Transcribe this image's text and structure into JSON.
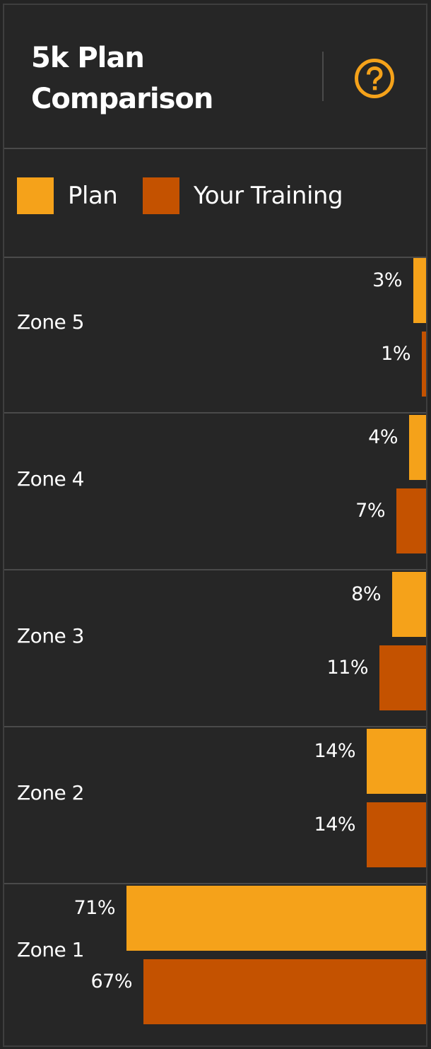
{
  "header": {
    "title": "5k Plan Comparison",
    "help_icon": "question-circle-icon"
  },
  "legend": {
    "items": [
      {
        "label": "Plan",
        "color": "#F5A21A"
      },
      {
        "label": "Your Training",
        "color": "#C45200"
      }
    ]
  },
  "colors": {
    "background": "#262626",
    "divider": "#4a4a4a",
    "accent": "#F5A21A",
    "plan": "#F5A21A",
    "yours": "#C45200"
  },
  "chart_data": {
    "type": "bar",
    "orientation": "horizontal",
    "categories": [
      "Zone 5",
      "Zone 4",
      "Zone 3",
      "Zone 2",
      "Zone 1"
    ],
    "series": [
      {
        "name": "Plan",
        "values": [
          3,
          4,
          8,
          14,
          71
        ],
        "labels": [
          "3%",
          "4%",
          "8%",
          "14%",
          "71%"
        ]
      },
      {
        "name": "Your Training",
        "values": [
          1,
          7,
          11,
          14,
          67
        ],
        "labels": [
          "1%",
          "7%",
          "11%",
          "14%",
          "67%"
        ]
      }
    ],
    "xlim": [
      0,
      100
    ],
    "grid": false,
    "legend_position": "top"
  }
}
